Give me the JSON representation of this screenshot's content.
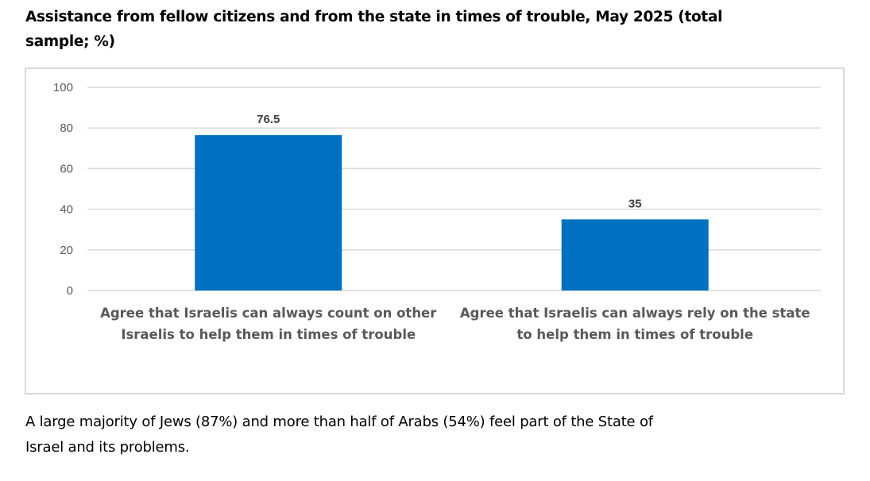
{
  "chart_data": {
    "type": "bar",
    "title": "Assistance from fellow citizens and from the state in times of trouble, May 2025 (total sample; %)",
    "xlabel": "",
    "ylabel": "",
    "ylim": [
      0,
      100
    ],
    "yticks": [
      "0",
      "20",
      "40",
      "60",
      "80",
      "100"
    ],
    "grid": true,
    "legend": "none",
    "categories": [
      [
        "Agree that Israelis can always count on other",
        "Israelis to help them in times of trouble"
      ],
      [
        "Agree that Israelis can always rely on the state",
        "to help them in times of trouble"
      ]
    ],
    "values": [
      76.5,
      35
    ],
    "data_labels": [
      "76.5",
      "35"
    ],
    "bar_color": "#0070c0"
  },
  "caption": "A large majority of Jews (87%) and more than half of Arabs (54%) feel part of the State of Israel and its problems.",
  "caption_lines": [
    "A large majority of Jews (87%) and more than half of Arabs (54%) feel part of the State of",
    "Israel and its problems."
  ],
  "title_lines": [
    "Assistance from fellow citizens and from the state in times of trouble, May 2025 (total",
    "sample; %)"
  ]
}
